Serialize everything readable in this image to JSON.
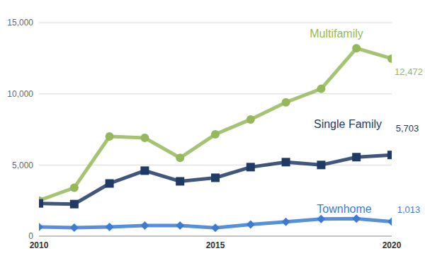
{
  "chart_data": {
    "type": "line",
    "x": [
      2010,
      2011,
      2012,
      2013,
      2014,
      2015,
      2016,
      2017,
      2018,
      2019,
      2020
    ],
    "xlim": [
      2010,
      2020
    ],
    "xticks": [
      2010,
      2015,
      2020
    ],
    "ylim": [
      0,
      15000
    ],
    "yticks": [
      0,
      {
        "value": 5000,
        "label": "5,000"
      },
      {
        "value": 10000,
        "label": "10,000"
      },
      {
        "value": 15000,
        "label": "15,000"
      }
    ],
    "grid": true,
    "series": [
      {
        "name": "Multifamily",
        "color": "#94b85b",
        "marker": "circle",
        "values": [
          2500,
          3400,
          7000,
          6900,
          5500,
          7150,
          8200,
          9400,
          10350,
          13200,
          12472
        ],
        "value_labels": [
          null,
          null,
          null,
          null,
          null,
          null,
          null,
          null,
          null,
          null,
          "12,472"
        ]
      },
      {
        "name": "Single Family",
        "color": "#1f3a64",
        "marker": "square",
        "values": [
          2300,
          2250,
          3700,
          4600,
          3850,
          4100,
          4850,
          5200,
          5000,
          5550,
          5703
        ],
        "value_labels": [
          null,
          null,
          null,
          null,
          null,
          null,
          null,
          null,
          null,
          null,
          "5,703"
        ]
      },
      {
        "name": "Townhome",
        "color": "#3b7bd4",
        "marker": "diamond",
        "values": [
          650,
          600,
          650,
          750,
          750,
          580,
          820,
          1000,
          1200,
          1230,
          1013
        ],
        "value_labels": [
          null,
          null,
          null,
          null,
          null,
          null,
          null,
          null,
          null,
          null,
          "1,013"
        ]
      }
    ]
  }
}
